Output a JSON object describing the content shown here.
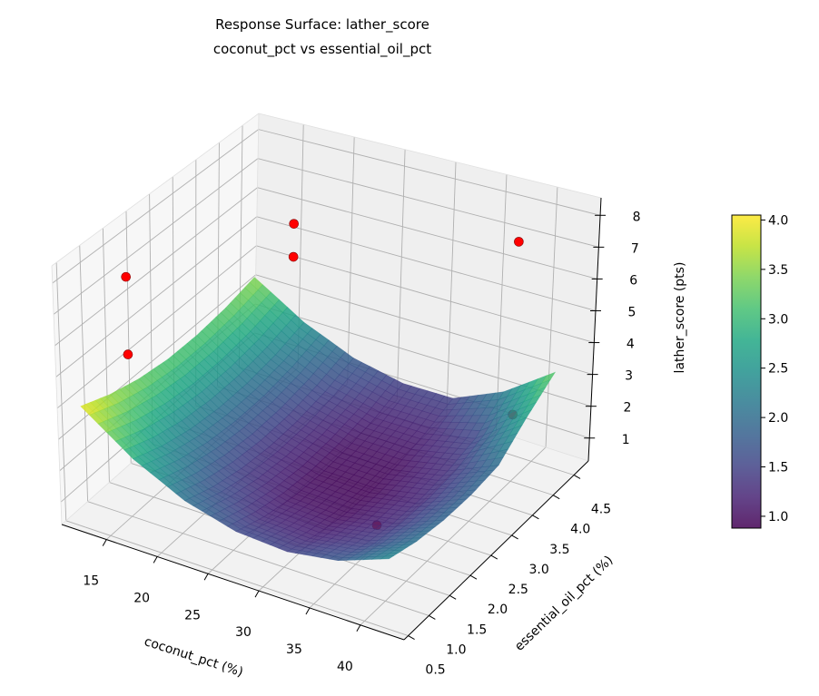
{
  "chart_data": {
    "type": "surface",
    "title": "Response Surface: lather_score",
    "subtitle": "coconut_pct vs essential_oil_pct",
    "xlabel": "coconut_pct (%)",
    "ylabel": "essential_oil_pct (%)",
    "zlabel": "lather_score (pts)",
    "xlim": [
      10.6,
      44.3
    ],
    "ylim": [
      0.4,
      4.85
    ],
    "zlim": [
      0.28,
      8.55
    ],
    "xticks": [
      15,
      20,
      25,
      30,
      35,
      40
    ],
    "yticks": [
      0.5,
      1.0,
      1.5,
      2.0,
      2.5,
      3.0,
      3.5,
      4.0,
      4.5
    ],
    "zticks": [
      1,
      2,
      3,
      4,
      5,
      6,
      7,
      8
    ],
    "grid": true,
    "colormap": "viridis",
    "surface": {
      "x": [
        12,
        17,
        22,
        27,
        32,
        37,
        42
      ],
      "y": [
        0.6,
        1.25,
        1.9,
        2.55,
        3.2,
        3.85,
        4.5
      ],
      "z": [
        [
          3.98,
          2.84,
          2.04,
          1.6,
          1.5,
          1.76,
          2.36
        ],
        [
          3.59,
          2.46,
          1.69,
          1.26,
          1.19,
          1.46,
          2.08
        ],
        [
          3.32,
          2.21,
          1.46,
          1.05,
          0.99,
          1.29,
          1.93
        ],
        [
          3.17,
          2.09,
          1.35,
          0.96,
          0.93,
          1.24,
          1.9
        ],
        [
          3.16,
          2.09,
          1.37,
          1.01,
          0.99,
          1.32,
          2.01
        ],
        [
          3.27,
          2.22,
          1.52,
          1.17,
          1.18,
          1.53,
          2.7
        ],
        [
          3.5,
          2.48,
          1.8,
          1.47,
          1.49,
          2.2,
          3.3
        ]
      ]
    },
    "points": [
      {
        "x": 15,
        "y": 1.0,
        "z": 8.0
      },
      {
        "x": 15,
        "y": 1.0,
        "z": 5.5
      },
      {
        "x": 18,
        "y": 4.0,
        "z": 6.5
      },
      {
        "x": 18,
        "y": 4.0,
        "z": 5.4
      },
      {
        "x": 40,
        "y": 4.0,
        "z": 7.9
      },
      {
        "x": 40,
        "y": 4.0,
        "z": 2.4
      },
      {
        "x": 35,
        "y": 2.0,
        "z": 0.9
      }
    ],
    "point_color": "#ff0000",
    "colorbar": {
      "min": 0.88,
      "max": 4.05,
      "ticks": [
        "1.0",
        "1.5",
        "2.0",
        "2.5",
        "3.0",
        "3.5",
        "4.0"
      ]
    }
  }
}
